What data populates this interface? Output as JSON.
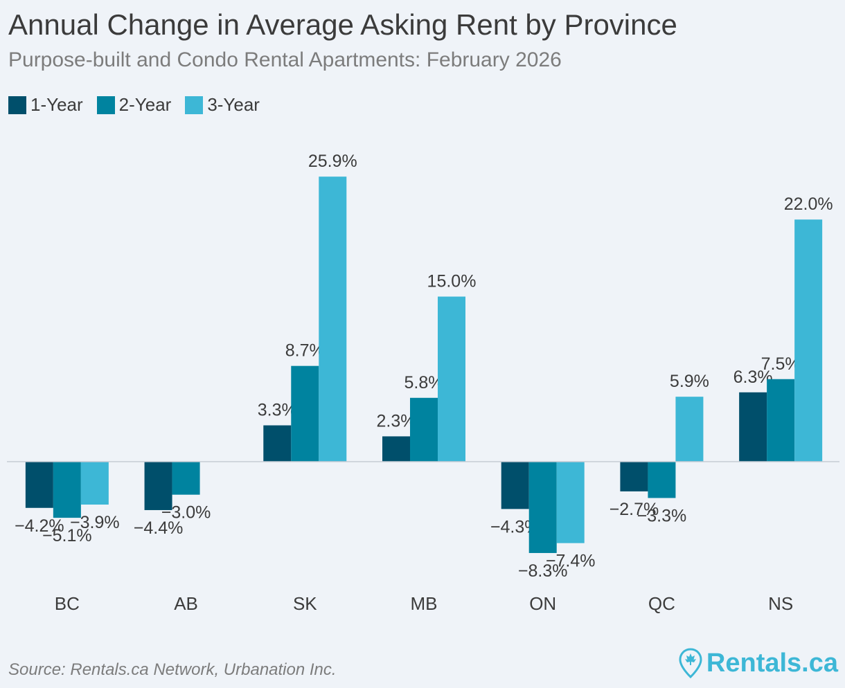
{
  "chart_data": {
    "type": "bar",
    "title": "Annual Change in Average Asking Rent by Province",
    "subtitle": "Purpose-built and Condo Rental Apartments: February 2026",
    "categories": [
      "BC",
      "AB",
      "SK",
      "MB",
      "ON",
      "QC",
      "NS"
    ],
    "series": [
      {
        "name": "1-Year",
        "color": "#004f6b",
        "values": [
          -4.2,
          -4.4,
          3.3,
          2.3,
          -4.3,
          -2.7,
          6.3
        ],
        "labels": [
          "−4.2%",
          "−4.4%",
          "3.3%",
          "2.3%",
          "−4.3%",
          "−2.7%",
          "6.3%"
        ]
      },
      {
        "name": "2-Year",
        "color": "#00839f",
        "values": [
          -5.1,
          -3.0,
          8.7,
          5.8,
          -8.3,
          -3.3,
          7.5
        ],
        "labels": [
          "−5.1%",
          "−3.0%",
          "8.7%",
          "5.8%",
          "−8.3%",
          "−3.3%",
          "7.5%"
        ]
      },
      {
        "name": "3-Year",
        "color": "#3db7d6",
        "values": [
          -3.9,
          null,
          25.9,
          15.0,
          -7.4,
          5.9,
          22.0
        ],
        "labels": [
          "−3.9%",
          "",
          "25.9%",
          "15.0%",
          "−7.4%",
          "5.9%",
          "22.0%"
        ]
      }
    ],
    "ylim": [
      -12,
      29
    ],
    "grid": false,
    "legend": "top-left"
  },
  "footer": {
    "source": "Source: Rentals.ca Network, Urbanation Inc.",
    "brand": "Rentals.ca"
  },
  "colors": {
    "background": "#eff3f8",
    "text": "#3b3b3b",
    "muted": "#7c7c7c",
    "brand": "#3db7d6"
  },
  "icons": {
    "brand_logo": "map-pin-maple-leaf-icon"
  }
}
